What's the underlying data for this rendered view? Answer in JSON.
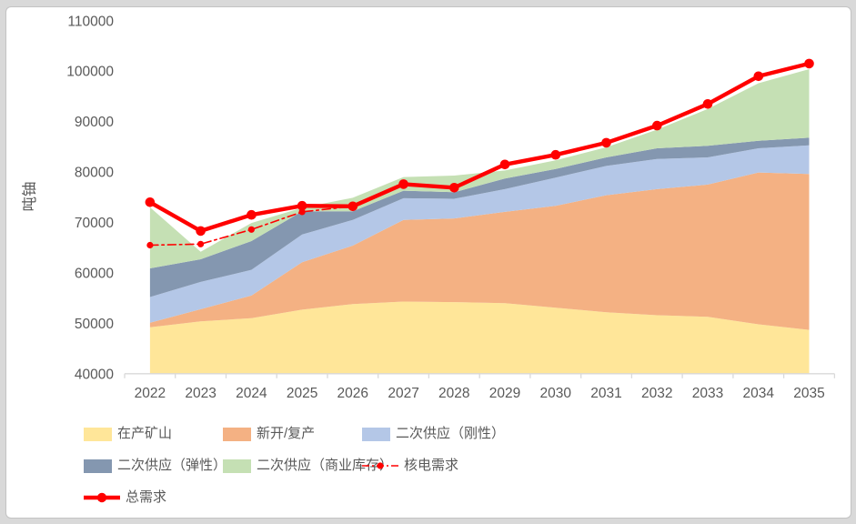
{
  "chart_data": {
    "type": "area",
    "subtype": "stacked-area-with-lines",
    "title": "",
    "xlabel": "",
    "ylabel": "吨铀",
    "ylim": [
      40000,
      110000
    ],
    "y_ticks": [
      40000,
      50000,
      60000,
      70000,
      80000,
      90000,
      100000,
      110000
    ],
    "gridlines": false,
    "legend_position": "bottom",
    "categories": [
      "2022",
      "2023",
      "2024",
      "2025",
      "2026",
      "2027",
      "2028",
      "2029",
      "2030",
      "2031",
      "2032",
      "2033",
      "2034",
      "2035"
    ],
    "series": [
      {
        "name": "在产矿山",
        "kind": "stacked-area",
        "color": "#FFE699",
        "values": [
          49200,
          50400,
          51000,
          52700,
          53800,
          54300,
          54200,
          54000,
          53100,
          52200,
          51600,
          51300,
          49800,
          48700
        ]
      },
      {
        "name": "新开/复产",
        "kind": "stacked-area",
        "color": "#F4B183",
        "values": [
          900,
          2400,
          4500,
          9400,
          11600,
          16200,
          16600,
          18100,
          20200,
          23200,
          25000,
          26200,
          30100,
          30900
        ]
      },
      {
        "name": "二次供应（刚性）",
        "kind": "stacked-area",
        "color": "#B4C7E7",
        "values": [
          5100,
          5400,
          5100,
          5500,
          5100,
          4300,
          3900,
          4500,
          5600,
          5800,
          6000,
          5400,
          4800,
          5700
        ]
      },
      {
        "name": "二次供应（弹性）",
        "kind": "stacked-area",
        "color": "#8497B0",
        "values": [
          5700,
          4500,
          5700,
          4600,
          1700,
          1500,
          1300,
          2100,
          1700,
          1700,
          2100,
          2300,
          1500,
          1500
        ]
      },
      {
        "name": "二次供应（商业库存）",
        "kind": "stacked-area",
        "color": "#C5E0B4",
        "values": [
          12100,
          1500,
          3600,
          700,
          2700,
          2700,
          3300,
          1600,
          1700,
          2000,
          3700,
          7300,
          11400,
          13600
        ]
      },
      {
        "name": "核电需求",
        "kind": "line",
        "line_style": "dash-dot",
        "color": "#FF0000",
        "values": [
          65500,
          65700,
          68600,
          72100,
          73200,
          77600,
          76900,
          81500,
          83400,
          85800,
          89200,
          93500,
          99000,
          101500
        ]
      },
      {
        "name": "总需求",
        "kind": "line",
        "line_style": "solid",
        "color": "#FF0000",
        "values": [
          74000,
          68300,
          71500,
          73300,
          73200,
          77600,
          76900,
          81500,
          83400,
          85800,
          89200,
          93500,
          99000,
          101500
        ]
      }
    ]
  },
  "legend": {
    "rows": [
      [
        0,
        1,
        2
      ],
      [
        3,
        4,
        5
      ],
      [
        6
      ]
    ]
  },
  "colors": {
    "axis_text": "#595959",
    "axis_line": "#D9D9D9",
    "frame_border": "#C3C3C3",
    "background": "#FFFFFF",
    "accent_red": "#FF0000"
  }
}
